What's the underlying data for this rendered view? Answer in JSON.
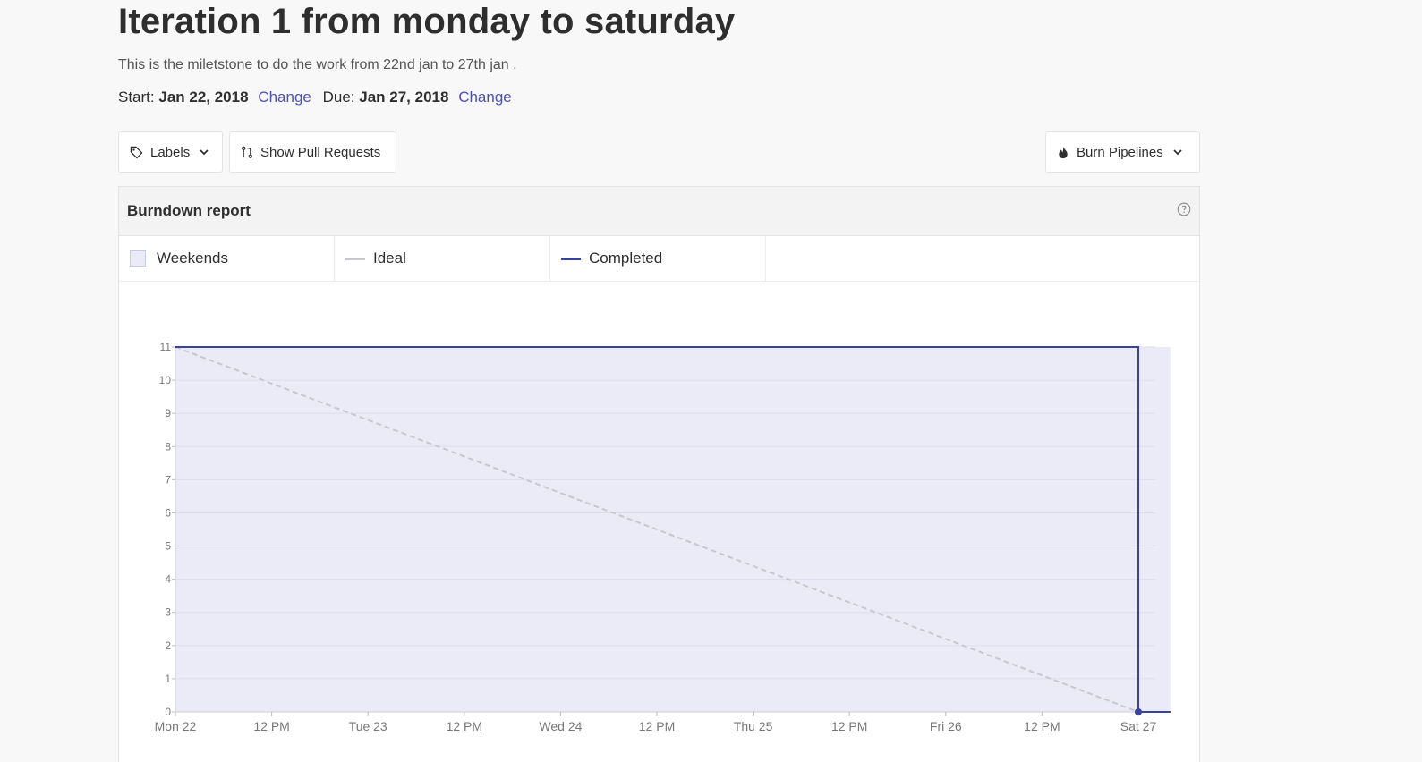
{
  "header": {
    "title": "Iteration 1 from monday to saturday",
    "description": "This is the miletstone to do the work from 22nd jan to 27th jan .",
    "start_label": "Start:",
    "start_date": "Jan 22, 2018",
    "due_label": "Due:",
    "due_date": "Jan 27, 2018",
    "change_label": "Change"
  },
  "toolbar": {
    "labels_button": "Labels",
    "pull_requests_button": "Show Pull Requests",
    "burn_button": "Burn Pipelines"
  },
  "panel": {
    "title": "Burndown report"
  },
  "legend": {
    "weekends": "Weekends",
    "ideal": "Ideal",
    "completed": "Completed"
  },
  "colors": {
    "completed": "#39439a",
    "ideal": "#c8c8cc",
    "weekend_fill": "#ebebf8",
    "link": "#4f50b5"
  },
  "chart_data": {
    "type": "line",
    "title": "",
    "xlabel": "",
    "ylabel": "",
    "ylim": [
      0,
      11
    ],
    "yticks": [
      0,
      1,
      2,
      3,
      4,
      5,
      6,
      7,
      8,
      9,
      10,
      11
    ],
    "xlim": [
      "2018-01-22T00:00",
      "2018-01-27T04:00"
    ],
    "xtick_labels": [
      "Mon 22",
      "12 PM",
      "Tue 23",
      "12 PM",
      "Wed 24",
      "12 PM",
      "Thu 25",
      "12 PM",
      "Fri 26",
      "12 PM",
      "Sat 27"
    ],
    "xtick_values": [
      "2018-01-22T00:00",
      "2018-01-22T12:00",
      "2018-01-23T00:00",
      "2018-01-23T12:00",
      "2018-01-24T00:00",
      "2018-01-24T12:00",
      "2018-01-25T00:00",
      "2018-01-25T12:00",
      "2018-01-26T00:00",
      "2018-01-26T12:00",
      "2018-01-27T00:00"
    ],
    "grid": true,
    "series": [
      {
        "name": "Ideal",
        "style": "dashed",
        "x": [
          "2018-01-22T00:00",
          "2018-01-27T00:00"
        ],
        "values": [
          11,
          0
        ]
      },
      {
        "name": "Completed",
        "style": "step",
        "x": [
          "2018-01-22T00:00",
          "2018-01-27T00:00",
          "2018-01-27T00:00",
          "2018-01-27T04:00"
        ],
        "values": [
          11,
          11,
          0,
          0
        ]
      }
    ],
    "shaded_region": {
      "name": "Weekends",
      "x": [
        "2018-01-22T00:00",
        "2018-01-27T04:00"
      ]
    }
  }
}
